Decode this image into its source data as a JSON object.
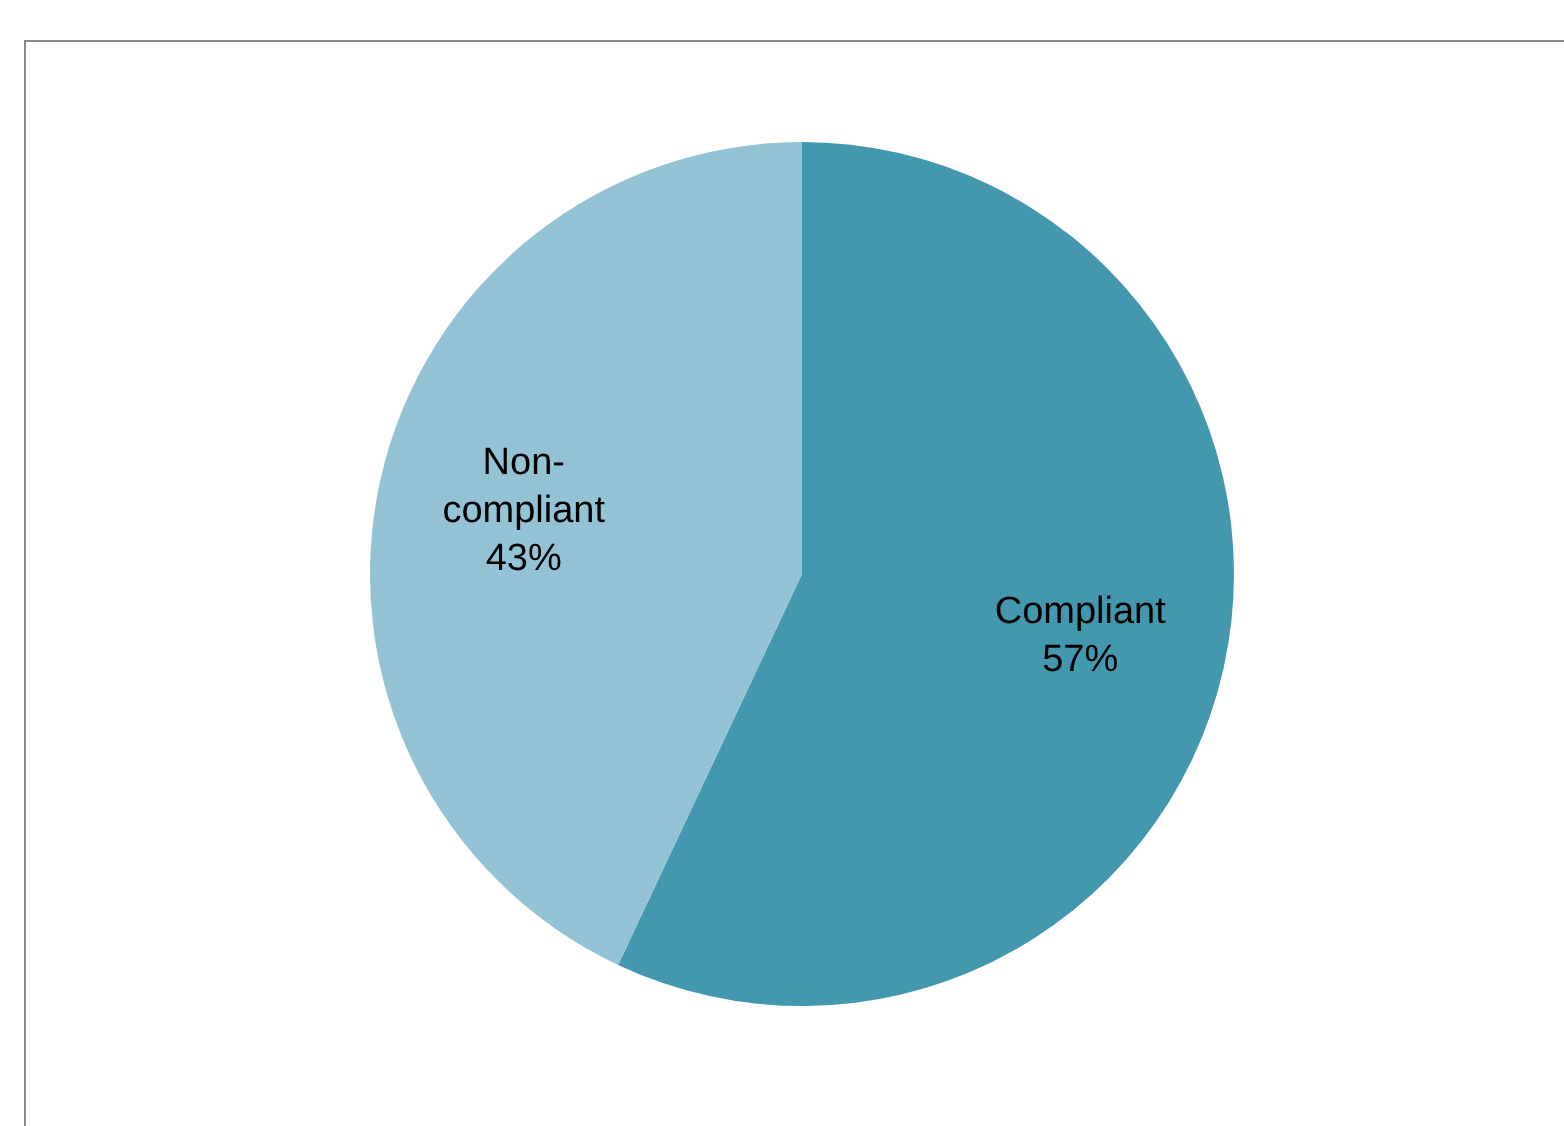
{
  "chart_data": {
    "type": "pie",
    "categories": [
      "Compliant",
      "Non-compliant"
    ],
    "values": [
      57,
      43
    ],
    "colors": [
      "#4398b0",
      "#93c3d5"
    ],
    "value_labels": [
      "57%",
      "43%"
    ],
    "legend": false
  }
}
